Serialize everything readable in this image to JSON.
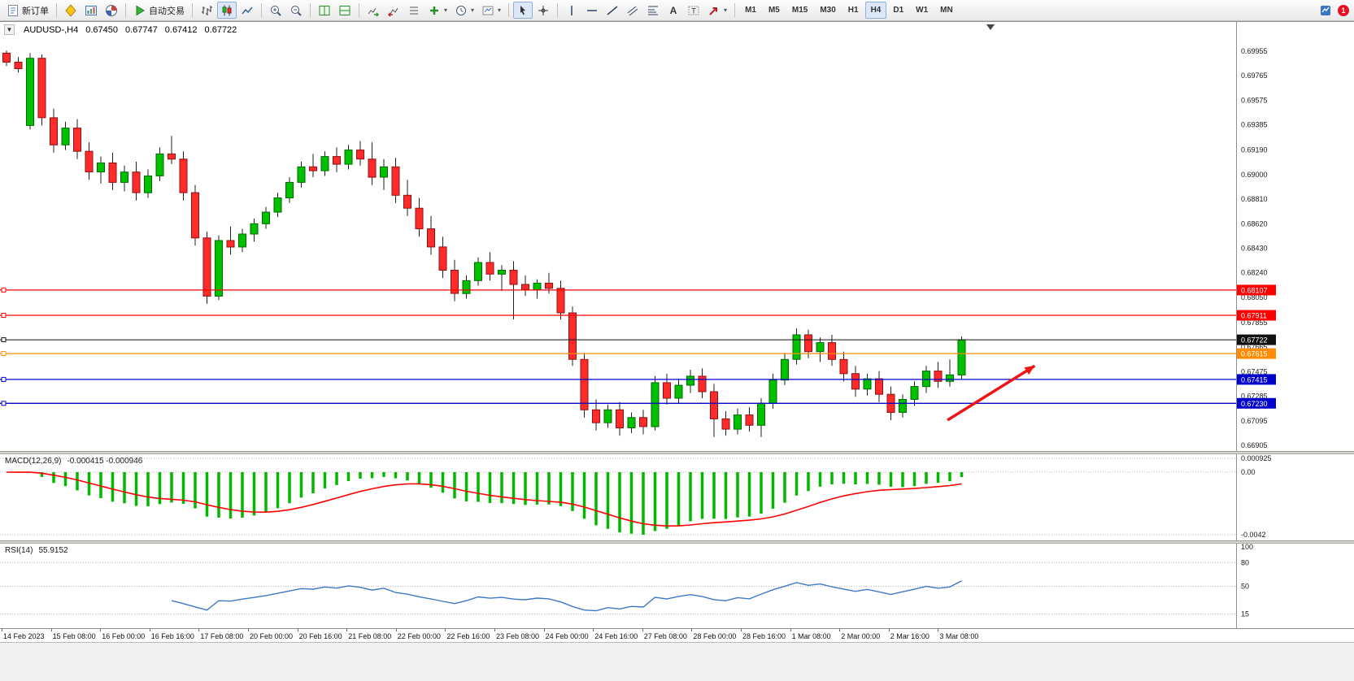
{
  "app": {
    "toolbar": {
      "groups": [
        {
          "items": [
            {
              "name": "new-order-button",
              "icon": "new-order",
              "label": "新订单"
            }
          ]
        },
        {
          "items": [
            {
              "name": "metaeditor-button",
              "icon": "metaquotes"
            },
            {
              "name": "charts-window-button",
              "icon": "charts-tile"
            },
            {
              "name": "market-watch-button",
              "icon": "market-watch"
            }
          ]
        },
        {
          "items": [
            {
              "name": "autotrading-button",
              "icon": "autotrade",
              "label": "自动交易"
            }
          ]
        },
        {
          "items": [
            {
              "name": "bar-chart-button",
              "icon": "bar-chart"
            },
            {
              "name": "candlestick-chart-button",
              "icon": "candle-chart",
              "active": true
            },
            {
              "name": "line-chart-button",
              "icon": "line-chart"
            }
          ]
        },
        {
          "items": [
            {
              "name": "zoom-in-button",
              "icon": "zoom-in"
            },
            {
              "name": "zoom-out-button",
              "icon": "zoom-out"
            }
          ]
        },
        {
          "items": [
            {
              "name": "tile-windows-button",
              "icon": "grid-green"
            },
            {
              "name": "new-chart-button",
              "icon": "grid-green2"
            }
          ]
        },
        {
          "items": [
            {
              "name": "auto-scroll-button",
              "icon": "auto-scroll"
            },
            {
              "name": "chart-shift-button",
              "icon": "chart-shift"
            },
            {
              "name": "object-list-button",
              "icon": "list"
            },
            {
              "name": "add-indicator-button",
              "icon": "indicator-add",
              "dropdown": true
            },
            {
              "name": "periods-button",
              "icon": "clock",
              "dropdown": true
            },
            {
              "name": "templates-button",
              "icon": "template",
              "dropdown": true
            }
          ]
        },
        {
          "items": [
            {
              "name": "cursor-tool-button",
              "icon": "cursor",
              "active": true
            },
            {
              "name": "crosshair-tool-button",
              "icon": "crosshair"
            }
          ]
        },
        {
          "items": [
            {
              "name": "vertical-line-tool",
              "icon": "vline"
            },
            {
              "name": "horizontal-line-tool",
              "icon": "hline"
            },
            {
              "name": "trendline-tool",
              "icon": "trendline"
            },
            {
              "name": "channel-tool",
              "icon": "channel"
            },
            {
              "name": "fibonacci-tool",
              "icon": "fibo"
            },
            {
              "name": "text-tool",
              "icon": "text"
            },
            {
              "name": "text-label-tool",
              "icon": "label"
            },
            {
              "name": "arrows-tool",
              "icon": "arrows",
              "dropdown": true
            }
          ]
        },
        {
          "items": [
            {
              "name": "timeframe-m1",
              "label": "M1",
              "tf": true
            },
            {
              "name": "timeframe-m5",
              "label": "M5",
              "tf": true
            },
            {
              "name": "timeframe-m15",
              "label": "M15",
              "tf": true
            },
            {
              "name": "timeframe-m30",
              "label": "M30",
              "tf": true
            },
            {
              "name": "timeframe-h1",
              "label": "H1",
              "tf": true
            },
            {
              "name": "timeframe-h4",
              "label": "H4",
              "tf": true,
              "active": true
            },
            {
              "name": "timeframe-d1",
              "label": "D1",
              "tf": true
            },
            {
              "name": "timeframe-w1",
              "label": "W1",
              "tf": true
            },
            {
              "name": "timeframe-mn",
              "label": "MN",
              "tf": true
            }
          ]
        }
      ],
      "notification": {
        "name": "news-button",
        "icon": "alerts",
        "badge": "1"
      }
    }
  },
  "chart": {
    "header": {
      "collapse_icon": "▼",
      "title": "AUDUSD-,H4",
      "open": "0.67450",
      "high": "0.67747",
      "low": "0.67412",
      "close": "0.67722"
    }
  },
  "chart_data": {
    "type": "candlestick",
    "symbol": "AUDUSD-",
    "period": "H4",
    "ohlc_current": {
      "open": 0.6745,
      "high": 0.67747,
      "low": 0.67412,
      "close": 0.67722
    },
    "price_axis": {
      "max": 0.69955,
      "min": 0.66905,
      "ticks": [
        "0.69955",
        "0.69765",
        "0.69575",
        "0.69385",
        "0.69190",
        "0.69000",
        "0.68810",
        "0.68620",
        "0.68430",
        "0.68240",
        "0.68050",
        "0.67855",
        "0.67665",
        "0.67475",
        "0.67285",
        "0.67095",
        "0.66905"
      ]
    },
    "time_labels": [
      "14 Feb 2023",
      "15 Feb 08:00",
      "16 Feb 00:00",
      "16 Feb 16:00",
      "17 Feb 08:00",
      "20 Feb 00:00",
      "20 Feb 16:00",
      "21 Feb 08:00",
      "22 Feb 00:00",
      "22 Feb 16:00",
      "23 Feb 08:00",
      "24 Feb 00:00",
      "24 Feb 16:00",
      "27 Feb 08:00",
      "28 Feb 00:00",
      "28 Feb 16:00",
      "1 Mar 08:00",
      "2 Mar 00:00",
      "2 Mar 16:00",
      "3 Mar 08:00"
    ],
    "candles": [
      [
        0.6994,
        0.6996,
        0.6984,
        0.6987
      ],
      [
        0.6987,
        0.6991,
        0.6979,
        0.6982
      ],
      [
        0.6938,
        0.6994,
        0.6935,
        0.699
      ],
      [
        0.699,
        0.6993,
        0.6938,
        0.6944
      ],
      [
        0.6944,
        0.6951,
        0.6917,
        0.6923
      ],
      [
        0.6923,
        0.6941,
        0.6919,
        0.6936
      ],
      [
        0.6936,
        0.6943,
        0.6912,
        0.6918
      ],
      [
        0.6918,
        0.6925,
        0.6896,
        0.6902
      ],
      [
        0.6902,
        0.6914,
        0.6893,
        0.6909
      ],
      [
        0.6909,
        0.6917,
        0.6888,
        0.6894
      ],
      [
        0.6894,
        0.6907,
        0.6887,
        0.6902
      ],
      [
        0.6902,
        0.691,
        0.688,
        0.6886
      ],
      [
        0.6886,
        0.6904,
        0.6882,
        0.6899
      ],
      [
        0.6899,
        0.6921,
        0.6895,
        0.6916
      ],
      [
        0.6916,
        0.693,
        0.6908,
        0.6912
      ],
      [
        0.6912,
        0.6918,
        0.688,
        0.6886
      ],
      [
        0.6886,
        0.6892,
        0.6845,
        0.6851
      ],
      [
        0.6851,
        0.6856,
        0.68,
        0.6806
      ],
      [
        0.6806,
        0.6853,
        0.6803,
        0.6849
      ],
      [
        0.6849,
        0.686,
        0.6838,
        0.6844
      ],
      [
        0.6844,
        0.6858,
        0.684,
        0.6854
      ],
      [
        0.6854,
        0.6866,
        0.6848,
        0.6862
      ],
      [
        0.6862,
        0.6875,
        0.6858,
        0.6871
      ],
      [
        0.6871,
        0.6886,
        0.6867,
        0.6882
      ],
      [
        0.6882,
        0.6898,
        0.6878,
        0.6894
      ],
      [
        0.6894,
        0.691,
        0.689,
        0.6906
      ],
      [
        0.6906,
        0.6916,
        0.6898,
        0.6903
      ],
      [
        0.6903,
        0.6918,
        0.6899,
        0.6914
      ],
      [
        0.6914,
        0.6921,
        0.6902,
        0.6908
      ],
      [
        0.6908,
        0.6923,
        0.6904,
        0.6919
      ],
      [
        0.6919,
        0.6926,
        0.6907,
        0.6912
      ],
      [
        0.6912,
        0.6925,
        0.6892,
        0.6898
      ],
      [
        0.6898,
        0.6912,
        0.6888,
        0.6906
      ],
      [
        0.6906,
        0.6913,
        0.6878,
        0.6884
      ],
      [
        0.6884,
        0.6896,
        0.6868,
        0.6874
      ],
      [
        0.6874,
        0.6882,
        0.6852,
        0.6858
      ],
      [
        0.6858,
        0.6868,
        0.6838,
        0.6844
      ],
      [
        0.6844,
        0.6852,
        0.682,
        0.6826
      ],
      [
        0.6826,
        0.6834,
        0.6802,
        0.6808
      ],
      [
        0.6808,
        0.6822,
        0.6804,
        0.6818
      ],
      [
        0.6818,
        0.6836,
        0.6814,
        0.6832
      ],
      [
        0.6832,
        0.684,
        0.6818,
        0.6823
      ],
      [
        0.6823,
        0.683,
        0.681,
        0.6826
      ],
      [
        0.6826,
        0.6833,
        0.6788,
        0.6815
      ],
      [
        0.6815,
        0.6822,
        0.6806,
        0.6811
      ],
      [
        0.6811,
        0.6819,
        0.6804,
        0.6816
      ],
      [
        0.6816,
        0.6824,
        0.6808,
        0.6812
      ],
      [
        0.6812,
        0.6818,
        0.6788,
        0.6793
      ],
      [
        0.6793,
        0.6798,
        0.6752,
        0.6757
      ],
      [
        0.6757,
        0.6762,
        0.6712,
        0.6718
      ],
      [
        0.6718,
        0.6726,
        0.6702,
        0.6708
      ],
      [
        0.6708,
        0.6722,
        0.6704,
        0.6718
      ],
      [
        0.6718,
        0.6724,
        0.6698,
        0.6704
      ],
      [
        0.6704,
        0.6716,
        0.67,
        0.6712
      ],
      [
        0.6712,
        0.6718,
        0.6699,
        0.6705
      ],
      [
        0.6705,
        0.6744,
        0.6702,
        0.6739
      ],
      [
        0.6739,
        0.6746,
        0.6722,
        0.6727
      ],
      [
        0.6727,
        0.6742,
        0.6723,
        0.6737
      ],
      [
        0.6737,
        0.6749,
        0.6731,
        0.6744
      ],
      [
        0.6744,
        0.675,
        0.6727,
        0.6732
      ],
      [
        0.6732,
        0.6738,
        0.6697,
        0.6711
      ],
      [
        0.6711,
        0.6717,
        0.6698,
        0.6703
      ],
      [
        0.6703,
        0.6719,
        0.6699,
        0.6714
      ],
      [
        0.6714,
        0.672,
        0.6701,
        0.6706
      ],
      [
        0.6706,
        0.6727,
        0.6697,
        0.6723
      ],
      [
        0.6723,
        0.6746,
        0.6719,
        0.6741
      ],
      [
        0.6741,
        0.6762,
        0.6737,
        0.6757
      ],
      [
        0.6757,
        0.6781,
        0.6753,
        0.6776
      ],
      [
        0.6776,
        0.678,
        0.6758,
        0.6763
      ],
      [
        0.6763,
        0.6774,
        0.6755,
        0.677
      ],
      [
        0.677,
        0.6776,
        0.6752,
        0.6757
      ],
      [
        0.6757,
        0.6763,
        0.674,
        0.6746
      ],
      [
        0.6746,
        0.6752,
        0.6728,
        0.6734
      ],
      [
        0.6734,
        0.6746,
        0.6729,
        0.6742
      ],
      [
        0.6742,
        0.6748,
        0.6724,
        0.673
      ],
      [
        0.673,
        0.6736,
        0.671,
        0.6716
      ],
      [
        0.6716,
        0.673,
        0.6712,
        0.6726
      ],
      [
        0.6726,
        0.674,
        0.6721,
        0.6736
      ],
      [
        0.6736,
        0.6752,
        0.6731,
        0.6748
      ],
      [
        0.6748,
        0.6755,
        0.6735,
        0.674
      ],
      [
        0.674,
        0.6757,
        0.6736,
        0.6745
      ],
      [
        0.6745,
        0.67747,
        0.67412,
        0.67722
      ]
    ],
    "hlines": [
      {
        "name": "resistance-line-1",
        "price": 0.68107,
        "label": "0.68107",
        "color": "#ff0000"
      },
      {
        "name": "resistance-line-2",
        "price": 0.67911,
        "label": "0.67911",
        "color": "#ff0000"
      },
      {
        "name": "current-price-line",
        "price": 0.67722,
        "label": "0.67722",
        "color": "#111111"
      },
      {
        "name": "pivot-line",
        "price": 0.67615,
        "label": "0.67615",
        "color": "#ff8c00"
      },
      {
        "name": "support-line-1",
        "price": 0.67415,
        "label": "0.67415",
        "color": "#0000cd"
      },
      {
        "name": "support-line-2",
        "price": 0.6723,
        "label": "0.67230",
        "color": "#0000cd"
      }
    ],
    "arrow": {
      "name": "trend-arrow",
      "color": "#f01414",
      "from_index": 79.8,
      "from_price": 0.671,
      "to_index": 87.2,
      "to_price": 0.6752
    },
    "indicators": {
      "macd": {
        "title": "MACD(12,26,9)",
        "values_text": "-0.000415 -0.000946",
        "fast": 12,
        "slow": 26,
        "signal": 9,
        "axis_labels": [
          {
            "text": "0.000925",
            "value": 0.000925
          },
          {
            "text": "0.00",
            "value": 0
          },
          {
            "text": "-0.0042",
            "value": -0.0042
          }
        ]
      },
      "rsi": {
        "title": "RSI(14)",
        "value_text": "55.9152",
        "period": 14,
        "axis_labels": [
          {
            "text": "100",
            "value": 100
          },
          {
            "text": "80",
            "value": 80
          },
          {
            "text": "50",
            "value": 50
          },
          {
            "text": "15",
            "value": 15
          }
        ],
        "levels": [
          80,
          50,
          15
        ]
      }
    },
    "colors": {
      "up": "#00c000",
      "up_border": "#006a00",
      "down": "#ff2a2a",
      "down_border": "#8f1212",
      "wick": "#202020",
      "macd_bar": "#00b800",
      "macd_signal": "#ff0000",
      "rsi_line": "#3c78c8",
      "axis_text": "#1a1a1a",
      "grid_dash": "#b5b5b5",
      "background": "#ffffff"
    }
  }
}
